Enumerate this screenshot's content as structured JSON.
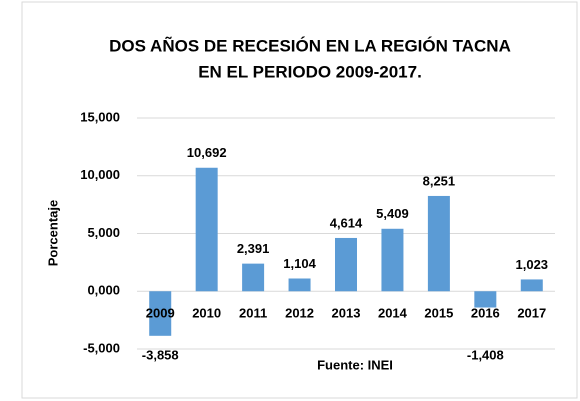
{
  "chart_data": {
    "type": "bar",
    "title": [
      "DOS AÑOS DE RECESIÓN EN LA REGIÓN TACNA",
      "EN EL PERIODO 2009-2017."
    ],
    "ylabel": "Porcentaje",
    "annotation": "Fuente: INEI",
    "categories": [
      "2009",
      "2010",
      "2011",
      "2012",
      "2013",
      "2014",
      "2015",
      "2016",
      "2017"
    ],
    "values": [
      -3.858,
      10.692,
      2.391,
      1.104,
      4.614,
      5.409,
      8.251,
      -1.408,
      1.023
    ],
    "value_labels": [
      "-3,858",
      "10,692",
      "2,391",
      "1,104",
      "4,614",
      "5,409",
      "8,251",
      "-1,408",
      "1,023"
    ],
    "color": "#5b9bd5",
    "ylim": [
      -5,
      15
    ],
    "yticks": [
      {
        "value": -5,
        "label": "-5,000"
      },
      {
        "value": 0,
        "label": "0,000"
      },
      {
        "value": 5,
        "label": "5,000"
      },
      {
        "value": 10,
        "label": "10,000"
      },
      {
        "value": 15,
        "label": "15,000"
      }
    ],
    "grid": true
  }
}
